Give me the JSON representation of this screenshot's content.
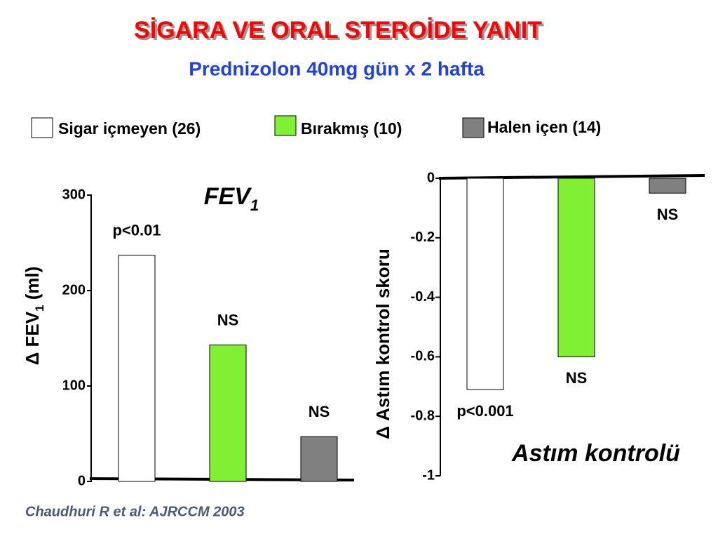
{
  "title": "SİGARA VE ORAL STEROİDE YANIT",
  "subtitle": "Prednizolon 40mg gün x 2 hafta",
  "legend": [
    {
      "name": "Sigar içmeyen (26)",
      "color": "#ffffff"
    },
    {
      "name": "Bırakmış (10)",
      "color": "#80f034"
    },
    {
      "name": "Halen içen (14)",
      "color": "#808080"
    }
  ],
  "chart_data": [
    {
      "type": "bar",
      "title": [
        "FEV",
        "1"
      ],
      "ylabel": [
        "Δ FEV",
        "1",
        " (ml)"
      ],
      "categories": [
        null,
        null,
        null
      ],
      "values": [
        237,
        143,
        47
      ],
      "annotations": [
        "p<0.01",
        "NS",
        "NS"
      ],
      "ylim": [
        0,
        300
      ],
      "yticks": [
        0,
        100,
        200,
        300
      ]
    },
    {
      "type": "bar",
      "title": [
        "Astım kontrolü"
      ],
      "ylabel": [
        "Δ Astım kontrol skoru"
      ],
      "categories": [
        null,
        null,
        null
      ],
      "values": [
        -0.71,
        -0.6,
        -0.05
      ],
      "annotations": [
        "p<0.001",
        "NS",
        "NS"
      ],
      "ylim": [
        -1,
        0
      ],
      "yticks": [
        0,
        -0.2,
        -0.4,
        -0.6,
        -0.8,
        -1
      ]
    }
  ],
  "footnote": "Chaudhuri R et al: AJRCCM 2003"
}
